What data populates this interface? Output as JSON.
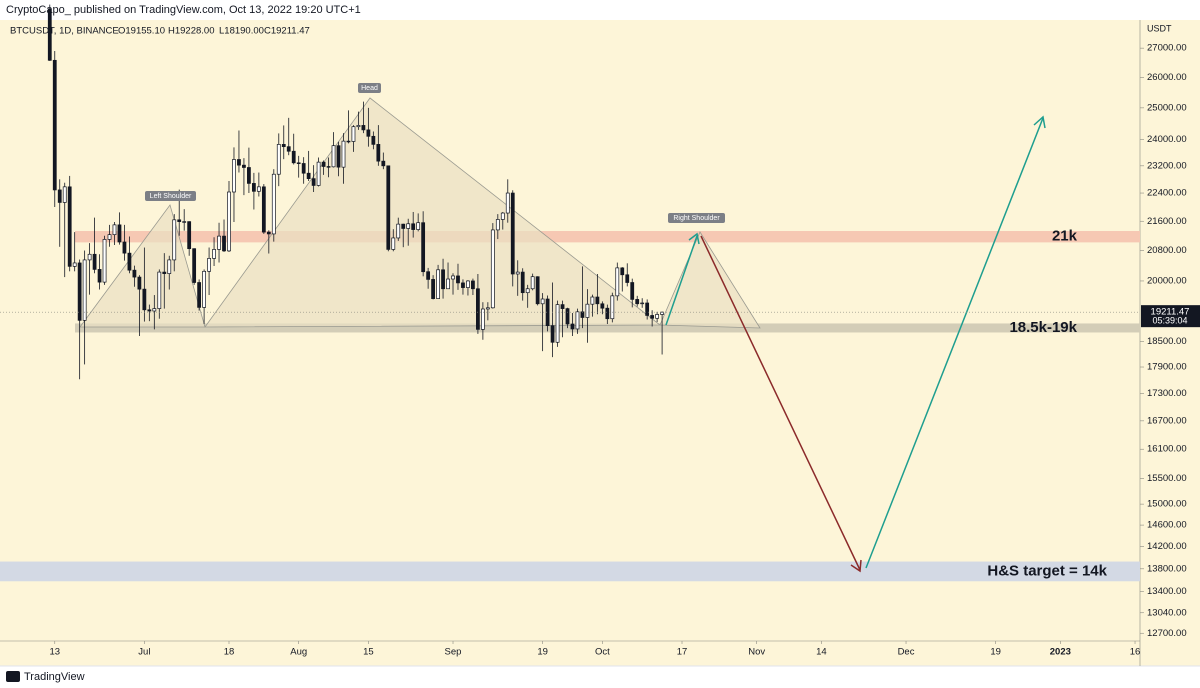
{
  "header": {
    "publisher": "CryptoCapo_ published on TradingView.com, Oct 13, 2022 19:20 UTC+1",
    "symbol": "BTCUSDT, 1D, BINANCE",
    "open": "O19155.10",
    "high": "H19228.00",
    "low": "L18190.00",
    "close": "C19211.47"
  },
  "footer": {
    "brand": "TradingView"
  },
  "chart_data": {
    "type": "candlestick",
    "log_scale": true,
    "grid": false,
    "y_unit": "USDT",
    "colors": {
      "up": "#ffffff",
      "down": "#131722",
      "wick": "#131722"
    },
    "xlim": [
      "2022-06-02",
      "2023-01-17"
    ],
    "ylim": [
      12590,
      28070
    ],
    "yticks": [
      {
        "value": 27000,
        "label": "27000.00"
      },
      {
        "value": 26000,
        "label": "26000.00"
      },
      {
        "value": 25000,
        "label": "25000.00"
      },
      {
        "value": 24000,
        "label": "24000.00"
      },
      {
        "value": 23200,
        "label": "23200.00"
      },
      {
        "value": 22400,
        "label": "22400.00"
      },
      {
        "value": 21600,
        "label": "21600.00"
      },
      {
        "value": 20800,
        "label": "20800.00"
      },
      {
        "value": 20000,
        "label": "20000.00"
      },
      {
        "value": 18500,
        "label": "18500.00"
      },
      {
        "value": 17900,
        "label": "17900.00"
      },
      {
        "value": 17300,
        "label": "17300.00"
      },
      {
        "value": 16700,
        "label": "16700.00"
      },
      {
        "value": 16100,
        "label": "16100.00"
      },
      {
        "value": 15500,
        "label": "15500.00"
      },
      {
        "value": 15000,
        "label": "15000.00"
      },
      {
        "value": 14600,
        "label": "14600.00"
      },
      {
        "value": 14200,
        "label": "14200.00"
      },
      {
        "value": 13800,
        "label": "13800.00"
      },
      {
        "value": 13400,
        "label": "13400.00"
      },
      {
        "value": 13040,
        "label": "13040.00"
      },
      {
        "value": 12700,
        "label": "12700.00"
      }
    ],
    "xticks": [
      {
        "value": "2022-06-13",
        "label": "13"
      },
      {
        "value": "2022-07-01",
        "label": "Jul"
      },
      {
        "value": "2022-07-18",
        "label": "18"
      },
      {
        "value": "2022-08-01",
        "label": "Aug"
      },
      {
        "value": "2022-08-15",
        "label": "15"
      },
      {
        "value": "2022-09-01",
        "label": "Sep"
      },
      {
        "value": "2022-09-19",
        "label": "19"
      },
      {
        "value": "2022-10-01",
        "label": "Oct"
      },
      {
        "value": "2022-10-17",
        "label": "17"
      },
      {
        "value": "2022-11-01",
        "label": "Nov"
      },
      {
        "value": "2022-11-14",
        "label": "14"
      },
      {
        "value": "2022-12-01",
        "label": "Dec"
      },
      {
        "value": "2022-12-19",
        "label": "19"
      },
      {
        "value": "2023-01-01",
        "label": "2023"
      },
      {
        "value": "2023-01-16",
        "label": "16"
      }
    ],
    "last_price": 19211.47,
    "countdown": "05:39:04",
    "x": [
      "2022-06-12",
      "2022-06-13",
      "2022-06-14",
      "2022-06-15",
      "2022-06-16",
      "2022-06-17",
      "2022-06-18",
      "2022-06-19",
      "2022-06-20",
      "2022-06-21",
      "2022-06-22",
      "2022-06-23",
      "2022-06-24",
      "2022-06-25",
      "2022-06-26",
      "2022-06-27",
      "2022-06-28",
      "2022-06-29",
      "2022-06-30",
      "2022-07-01",
      "2022-07-02",
      "2022-07-03",
      "2022-07-04",
      "2022-07-05",
      "2022-07-06",
      "2022-07-07",
      "2022-07-08",
      "2022-07-09",
      "2022-07-10",
      "2022-07-11",
      "2022-07-12",
      "2022-07-13",
      "2022-07-14",
      "2022-07-15",
      "2022-07-16",
      "2022-07-17",
      "2022-07-18",
      "2022-07-19",
      "2022-07-20",
      "2022-07-21",
      "2022-07-22",
      "2022-07-23",
      "2022-07-24",
      "2022-07-25",
      "2022-07-26",
      "2022-07-27",
      "2022-07-28",
      "2022-07-29",
      "2022-07-30",
      "2022-07-31",
      "2022-08-01",
      "2022-08-02",
      "2022-08-03",
      "2022-08-04",
      "2022-08-05",
      "2022-08-06",
      "2022-08-07",
      "2022-08-08",
      "2022-08-09",
      "2022-08-10",
      "2022-08-11",
      "2022-08-12",
      "2022-08-13",
      "2022-08-14",
      "2022-08-15",
      "2022-08-16",
      "2022-08-17",
      "2022-08-18",
      "2022-08-19",
      "2022-08-20",
      "2022-08-21",
      "2022-08-22",
      "2022-08-23",
      "2022-08-24",
      "2022-08-25",
      "2022-08-26",
      "2022-08-27",
      "2022-08-28",
      "2022-08-29",
      "2022-08-30",
      "2022-08-31",
      "2022-09-01",
      "2022-09-02",
      "2022-09-03",
      "2022-09-04",
      "2022-09-05",
      "2022-09-06",
      "2022-09-07",
      "2022-09-08",
      "2022-09-09",
      "2022-09-10",
      "2022-09-11",
      "2022-09-12",
      "2022-09-13",
      "2022-09-14",
      "2022-09-15",
      "2022-09-16",
      "2022-09-17",
      "2022-09-18",
      "2022-09-19",
      "2022-09-20",
      "2022-09-21",
      "2022-09-22",
      "2022-09-23",
      "2022-09-24",
      "2022-09-25",
      "2022-09-26",
      "2022-09-27",
      "2022-09-28",
      "2022-09-29",
      "2022-09-30",
      "2022-10-01",
      "2022-10-02",
      "2022-10-03",
      "2022-10-04",
      "2022-10-05",
      "2022-10-06",
      "2022-10-07",
      "2022-10-08",
      "2022-10-09",
      "2022-10-10",
      "2022-10-11",
      "2022-10-12",
      "2022-10-13"
    ],
    "open": [
      28400,
      26580,
      22490,
      22130,
      22580,
      20380,
      20470,
      19010,
      20550,
      20700,
      20300,
      19970,
      21100,
      21230,
      21500,
      21030,
      20730,
      20280,
      20100,
      19790,
      19270,
      19240,
      19300,
      20230,
      20190,
      20550,
      21640,
      21590,
      21590,
      20850,
      19960,
      19330,
      20250,
      20590,
      20830,
      21190,
      20790,
      22430,
      23390,
      23220,
      23150,
      22680,
      22450,
      22580,
      21300,
      21250,
      22950,
      23850,
      23780,
      23640,
      23290,
      23270,
      22980,
      22820,
      22620,
      23310,
      23180,
      23170,
      23810,
      23160,
      23950,
      23940,
      24400,
      24440,
      24300,
      24100,
      23850,
      23340,
      23200,
      20830,
      21140,
      21520,
      21400,
      21530,
      21370,
      21560,
      20240,
      20040,
      19550,
      20290,
      19800,
      20050,
      20130,
      19950,
      19830,
      20000,
      19800,
      18790,
      19290,
      19320,
      21360,
      21650,
      21830,
      22400,
      20180,
      20230,
      19700,
      19800,
      20110,
      19420,
      19540,
      18880,
      18480,
      19400,
      19300,
      18920,
      18800,
      19220,
      19080,
      19410,
      19590,
      19420,
      19310,
      19050,
      19620,
      20340,
      20160,
      19960,
      19530,
      19420,
      19440,
      19130,
      19060,
      19155.1
    ],
    "high": [
      28560,
      26900,
      22800,
      22700,
      22900,
      21300,
      20560,
      20800,
      21000,
      21700,
      20700,
      21200,
      21500,
      21580,
      21850,
      21500,
      21180,
      20400,
      20150,
      20880,
      19400,
      19640,
      20300,
      20730,
      20660,
      21800,
      22500,
      21940,
      21600,
      20860,
      20040,
      20300,
      20880,
      21160,
      21560,
      21650,
      22750,
      23760,
      24280,
      23430,
      23750,
      22990,
      23000,
      22660,
      21350,
      23100,
      24190,
      24440,
      24680,
      24180,
      23500,
      23460,
      23650,
      23220,
      23450,
      23360,
      23450,
      24230,
      23930,
      24200,
      24920,
      24450,
      24880,
      25200,
      25000,
      24250,
      24450,
      23600,
      23200,
      21380,
      21700,
      21530,
      21670,
      21860,
      21820,
      21880,
      20340,
      20150,
      20420,
      20580,
      20480,
      20200,
      20450,
      20040,
      20020,
      20060,
      20180,
      19460,
      19460,
      21550,
      21800,
      21860,
      22800,
      22480,
      20540,
      20330,
      19900,
      20190,
      20120,
      19690,
      19630,
      19960,
      19500,
      19500,
      19320,
      19190,
      19300,
      20380,
      19790,
      19650,
      20180,
      19480,
      19400,
      19700,
      20480,
      20360,
      20460,
      20060,
      19620,
      19560,
      19530,
      19260,
      19220,
      19228
    ],
    "low": [
      26560,
      22000,
      20900,
      20100,
      20250,
      20250,
      17620,
      17960,
      19650,
      20200,
      19780,
      19900,
      20900,
      20950,
      20960,
      20530,
      20200,
      19850,
      18630,
      18980,
      18990,
      18790,
      19050,
      19300,
      19780,
      20250,
      21200,
      21340,
      20660,
      19900,
      19250,
      18920,
      19640,
      20390,
      20480,
      20760,
      20760,
      21580,
      23000,
      22340,
      22400,
      21930,
      22300,
      21250,
      20720,
      21040,
      22600,
      23400,
      23520,
      23240,
      22850,
      22670,
      22750,
      22430,
      22590,
      22930,
      22860,
      23150,
      22890,
      22670,
      23880,
      23620,
      24300,
      24200,
      23780,
      23700,
      23200,
      23100,
      20780,
      20780,
      21060,
      20890,
      20930,
      21150,
      21320,
      20120,
      19800,
      19530,
      19550,
      19550,
      19800,
      19650,
      19770,
      19650,
      19630,
      19640,
      18680,
      18540,
      19010,
      19300,
      21110,
      21370,
      21560,
      19860,
      19620,
      19500,
      19320,
      19760,
      19380,
      18270,
      18740,
      18130,
      18370,
      18600,
      18820,
      18630,
      18680,
      18820,
      18470,
      19100,
      19160,
      19160,
      18920,
      18960,
      19500,
      19730,
      19860,
      19330,
      19350,
      19320,
      19030,
      18860,
      18970,
      18190
    ],
    "close": [
      26580,
      22490,
      22130,
      22580,
      20380,
      20470,
      19010,
      20550,
      20700,
      20300,
      19970,
      21100,
      21230,
      21500,
      21030,
      20730,
      20280,
      20100,
      19790,
      19270,
      19240,
      19300,
      20230,
      20190,
      20550,
      21640,
      21590,
      21590,
      20850,
      19960,
      19330,
      20250,
      20590,
      20830,
      21190,
      20790,
      22430,
      23390,
      23220,
      23150,
      22680,
      22450,
      22580,
      21300,
      21250,
      22950,
      23850,
      23780,
      23640,
      23290,
      23270,
      22980,
      22820,
      22620,
      23310,
      23180,
      23170,
      23810,
      23160,
      23950,
      23940,
      24400,
      24440,
      24300,
      24100,
      23850,
      23340,
      23200,
      20830,
      21140,
      21520,
      21400,
      21530,
      21370,
      21560,
      20240,
      20040,
      19550,
      20290,
      19800,
      20050,
      20130,
      19950,
      19830,
      20000,
      19800,
      18790,
      19290,
      19320,
      21360,
      21650,
      21830,
      22400,
      20180,
      20230,
      19700,
      19800,
      20110,
      19420,
      19540,
      18880,
      18480,
      19400,
      19300,
      18920,
      18800,
      19220,
      19080,
      19410,
      19590,
      19420,
      19310,
      19050,
      19620,
      20340,
      20160,
      19960,
      19530,
      19420,
      19440,
      19130,
      19060,
      19155.1,
      19211.47
    ],
    "zones": [
      {
        "label": "21k",
        "low": 21020,
        "high": 21330,
        "color": "#f6c8b3"
      },
      {
        "label": "18.5k-19k",
        "low": 18715,
        "high": 18934,
        "color": "#d3cdb7"
      },
      {
        "label": "H&S target = 14k",
        "low": 13580,
        "high": 13930,
        "color": "#d3d9e4"
      }
    ],
    "annotations": {
      "left_shoulder": "Left Shoulder",
      "head": "Head",
      "right_shoulder": "Right Shoulder"
    }
  }
}
